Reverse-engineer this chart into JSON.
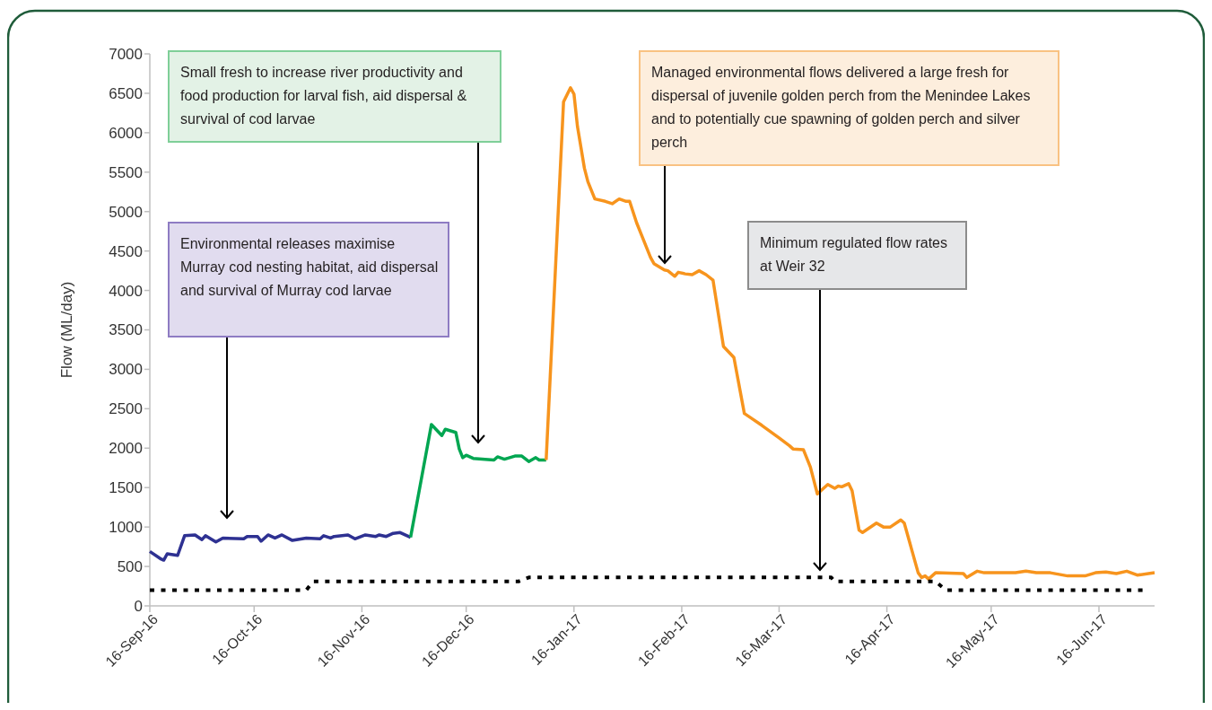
{
  "chart_data": {
    "type": "line",
    "ylabel": "Flow (ML/day)",
    "xlim": [
      "2016-09-16",
      "2017-07-02"
    ],
    "xticks": [
      {
        "value": "2016-09-16",
        "label": "16-Sep-16"
      },
      {
        "value": "2016-10-16",
        "label": "16-Oct-16"
      },
      {
        "value": "2016-11-16",
        "label": "16-Nov-16"
      },
      {
        "value": "2016-12-16",
        "label": "16-Dec-16"
      },
      {
        "value": "2017-01-16",
        "label": "16-Jan-17"
      },
      {
        "value": "2017-02-16",
        "label": "16-Feb-17"
      },
      {
        "value": "2017-03-16",
        "label": "16-Mar-17"
      },
      {
        "value": "2017-04-16",
        "label": "16-Apr-17"
      },
      {
        "value": "2017-05-16",
        "label": "16-May-17"
      },
      {
        "value": "2017-06-16",
        "label": "16-Jun-17"
      }
    ],
    "ylim": [
      0,
      7000
    ],
    "yticks": [
      0,
      500,
      1000,
      1500,
      2000,
      2500,
      3000,
      3500,
      4000,
      4500,
      5000,
      5500,
      6000,
      6500,
      7000
    ],
    "grid": false,
    "series": [
      {
        "color": "#2e3192",
        "x": [
          "2016-09-16",
          "2016-09-19",
          "2016-09-20",
          "2016-09-21",
          "2016-09-24",
          "2016-09-26",
          "2016-09-29",
          "2016-10-01",
          "2016-10-02",
          "2016-10-05",
          "2016-10-07",
          "2016-10-13",
          "2016-10-14",
          "2016-10-17",
          "2016-10-18",
          "2016-10-20",
          "2016-10-22",
          "2016-10-24",
          "2016-10-27",
          "2016-10-31",
          "2016-11-04",
          "2016-11-05",
          "2016-11-07",
          "2016-11-08",
          "2016-11-12",
          "2016-11-14",
          "2016-11-17",
          "2016-11-20",
          "2016-11-21",
          "2016-11-23",
          "2016-11-25",
          "2016-11-27",
          "2016-11-30"
        ],
        "values": [
          690,
          600,
          580,
          660,
          640,
          890,
          900,
          840,
          890,
          810,
          860,
          850,
          880,
          880,
          820,
          900,
          860,
          900,
          830,
          860,
          850,
          890,
          860,
          880,
          900,
          850,
          900,
          880,
          900,
          880,
          920,
          930,
          870
        ]
      },
      {
        "color": "#00a651",
        "x": [
          "2016-11-30",
          "2016-12-06",
          "2016-12-09",
          "2016-12-10",
          "2016-12-13",
          "2016-12-14",
          "2016-12-15",
          "2016-12-16",
          "2016-12-18",
          "2016-12-24",
          "2016-12-25",
          "2016-12-27",
          "2016-12-30",
          "2017-01-01",
          "2017-01-03",
          "2017-01-05",
          "2017-01-06",
          "2017-01-08"
        ],
        "values": [
          870,
          2300,
          2160,
          2240,
          2200,
          1990,
          1880,
          1910,
          1870,
          1850,
          1890,
          1860,
          1900,
          1900,
          1830,
          1880,
          1850,
          1850
        ]
      },
      {
        "color": "#f7941d",
        "x": [
          "2017-01-08",
          "2017-01-13",
          "2017-01-15",
          "2017-01-16",
          "2017-01-17",
          "2017-01-19",
          "2017-01-20",
          "2017-01-22",
          "2017-01-25",
          "2017-01-27",
          "2017-01-29",
          "2017-01-31",
          "2017-02-01",
          "2017-02-03",
          "2017-02-07",
          "2017-02-08",
          "2017-02-11",
          "2017-02-12",
          "2017-02-14",
          "2017-02-15",
          "2017-02-17",
          "2017-02-19",
          "2017-02-21",
          "2017-02-23",
          "2017-02-25",
          "2017-02-28",
          "2017-03-03",
          "2017-03-06",
          "2017-03-08",
          "2017-03-11",
          "2017-03-16",
          "2017-03-19",
          "2017-03-20",
          "2017-03-23",
          "2017-03-25",
          "2017-03-27",
          "2017-03-30",
          "2017-04-01",
          "2017-04-02",
          "2017-04-03",
          "2017-04-05",
          "2017-04-06",
          "2017-04-08",
          "2017-04-09",
          "2017-04-13",
          "2017-04-15",
          "2017-04-17",
          "2017-04-20",
          "2017-04-21",
          "2017-04-25",
          "2017-04-26",
          "2017-04-27",
          "2017-04-28",
          "2017-04-30",
          "2017-05-08",
          "2017-05-09",
          "2017-05-12",
          "2017-05-14",
          "2017-05-23",
          "2017-05-26",
          "2017-05-29",
          "2017-06-02",
          "2017-06-07",
          "2017-06-12",
          "2017-06-15",
          "2017-06-18",
          "2017-06-21",
          "2017-06-24",
          "2017-06-27",
          "2017-07-02"
        ],
        "values": [
          1850,
          6390,
          6570,
          6490,
          6080,
          5550,
          5380,
          5160,
          5130,
          5100,
          5160,
          5130,
          5130,
          4860,
          4420,
          4340,
          4260,
          4250,
          4180,
          4230,
          4210,
          4200,
          4250,
          4200,
          4130,
          3290,
          3150,
          2440,
          2380,
          2290,
          2130,
          2030,
          1990,
          1980,
          1760,
          1420,
          1540,
          1490,
          1520,
          1510,
          1550,
          1460,
          960,
          930,
          1050,
          1000,
          1000,
          1090,
          1050,
          420,
          360,
          380,
          340,
          420,
          410,
          360,
          440,
          420,
          420,
          440,
          420,
          420,
          380,
          380,
          420,
          430,
          410,
          440,
          390,
          420
        ]
      },
      {
        "color": "#000000",
        "line_style": "dotted",
        "x": [
          "2016-09-16",
          "2016-10-31",
          "2016-11-02",
          "2016-12-31",
          "2017-01-03",
          "2017-03-31",
          "2017-04-01",
          "2017-04-30",
          "2017-05-03",
          "2017-06-29"
        ],
        "values": [
          200,
          200,
          310,
          310,
          360,
          360,
          310,
          310,
          200,
          200
        ]
      }
    ],
    "annotations": [
      "Environmental releases maximise Murray cod nesting habitat, aid dispersal and survival of Murray cod larvae",
      "Small fresh to increase river productivity and food production for larval fish, aid dispersal & survival of cod larvae",
      "Managed environmental flows delivered a large fresh for dispersal of juvenile golden perch from the Menindee Lakes and to potentially cue spawning of golden perch and silver perch",
      "Minimum regulated flow rates at Weir 32"
    ]
  }
}
